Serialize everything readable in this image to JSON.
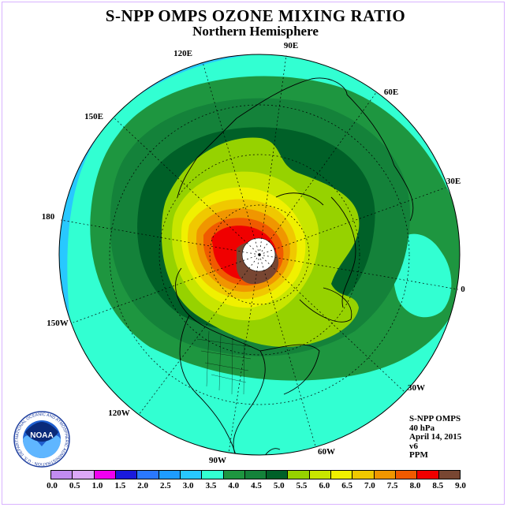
{
  "header": {
    "title": "S-NPP OMPS OZONE MIXING RATIO",
    "subtitle": "Northern Hemisphere"
  },
  "longitude_labels": [
    "90E",
    "60E",
    "30E",
    "0",
    "30W",
    "60W",
    "90W",
    "120W",
    "150W",
    "180",
    "150E",
    "120E"
  ],
  "info": {
    "instrument": "S-NPP OMPS",
    "level": "40 hPa",
    "date": "April 14, 2015",
    "version": "v6",
    "units": "PPM"
  },
  "logo": {
    "text": "NOAA",
    "ring_text": "NATIONAL OCEANIC AND ATMOSPHERIC ADMINISTRATION · U.S. DEPARTMENT OF COMMERCE"
  },
  "colorbar": {
    "ticks": [
      "0.0",
      "0.5",
      "1.0",
      "1.5",
      "2.0",
      "2.5",
      "3.0",
      "3.5",
      "4.0",
      "4.5",
      "5.0",
      "5.5",
      "6.0",
      "6.5",
      "7.0",
      "7.5",
      "8.0",
      "8.5",
      "9.0"
    ],
    "colors": [
      "#c28cf0",
      "#dca8f8",
      "#f000f0",
      "#1a1adc",
      "#2a78ff",
      "#1e9cff",
      "#28c8ff",
      "#32ffd2",
      "#1e9640",
      "#14823a",
      "#006028",
      "#96d200",
      "#c8e600",
      "#f0f000",
      "#f0c800",
      "#f09600",
      "#f05a00",
      "#f00000",
      "#784632"
    ]
  },
  "map_colors": {
    "background_ocean": "#32ffd2",
    "outer_band": "#28c8ff",
    "green_4_0": "#1e9640",
    "green_4_5": "#14823a",
    "dark_green_5_0": "#006028",
    "lime_5_5": "#96d200",
    "yellow_green_6_0": "#c8e600",
    "yellow_6_5": "#f0f000",
    "gold_7_0": "#f0c800",
    "orange_7_5": "#f09600",
    "red_orange_8_0": "#f05a00",
    "red_8_5": "#f00000",
    "brown_9_0": "#784632"
  }
}
